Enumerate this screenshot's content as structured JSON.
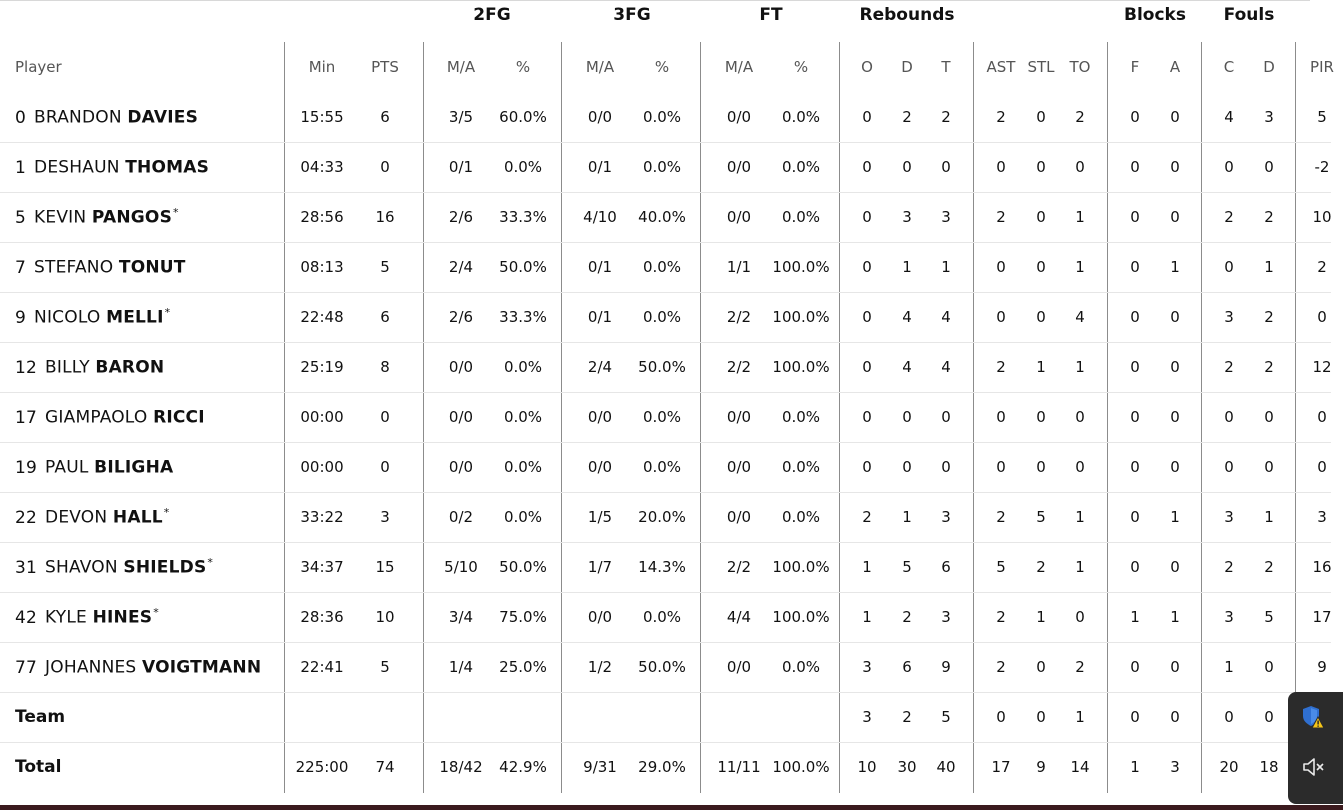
{
  "groups": {
    "fg2": "2FG",
    "fg3": "3FG",
    "ft": "FT",
    "reb": "Rebounds",
    "blk": "Blocks",
    "fouls": "Fouls"
  },
  "headers": {
    "player": "Player",
    "min": "Min",
    "pts": "PTS",
    "fg2_ma": "M/A",
    "fg2_pct": "%",
    "fg3_ma": "M/A",
    "fg3_pct": "%",
    "ft_ma": "M/A",
    "ft_pct": "%",
    "o": "O",
    "d": "D",
    "t": "T",
    "ast": "AST",
    "stl": "STL",
    "to": "TO",
    "blk_f": "F",
    "blk_a": "A",
    "foul_c": "C",
    "foul_d": "D",
    "pir": "PIR"
  },
  "players": [
    {
      "num": "0",
      "first": "BRANDON",
      "last": "DAVIES",
      "star": "",
      "min": "15:55",
      "pts": "6",
      "fg2_ma": "3/5",
      "fg2_pct": "60.0%",
      "fg3_ma": "0/0",
      "fg3_pct": "0.0%",
      "ft_ma": "0/0",
      "ft_pct": "0.0%",
      "o": "0",
      "d": "2",
      "t": "2",
      "ast": "2",
      "stl": "0",
      "to": "2",
      "blk_f": "0",
      "blk_a": "0",
      "foul_c": "4",
      "foul_d": "3",
      "pir": "5"
    },
    {
      "num": "1",
      "first": "DESHAUN",
      "last": "THOMAS",
      "star": "",
      "min": "04:33",
      "pts": "0",
      "fg2_ma": "0/1",
      "fg2_pct": "0.0%",
      "fg3_ma": "0/1",
      "fg3_pct": "0.0%",
      "ft_ma": "0/0",
      "ft_pct": "0.0%",
      "o": "0",
      "d": "0",
      "t": "0",
      "ast": "0",
      "stl": "0",
      "to": "0",
      "blk_f": "0",
      "blk_a": "0",
      "foul_c": "0",
      "foul_d": "0",
      "pir": "-2"
    },
    {
      "num": "5",
      "first": "KEVIN",
      "last": "PANGOS",
      "star": "*",
      "min": "28:56",
      "pts": "16",
      "fg2_ma": "2/6",
      "fg2_pct": "33.3%",
      "fg3_ma": "4/10",
      "fg3_pct": "40.0%",
      "ft_ma": "0/0",
      "ft_pct": "0.0%",
      "o": "0",
      "d": "3",
      "t": "3",
      "ast": "2",
      "stl": "0",
      "to": "1",
      "blk_f": "0",
      "blk_a": "0",
      "foul_c": "2",
      "foul_d": "2",
      "pir": "10"
    },
    {
      "num": "7",
      "first": "STEFANO",
      "last": "TONUT",
      "star": "",
      "min": "08:13",
      "pts": "5",
      "fg2_ma": "2/4",
      "fg2_pct": "50.0%",
      "fg3_ma": "0/1",
      "fg3_pct": "0.0%",
      "ft_ma": "1/1",
      "ft_pct": "100.0%",
      "o": "0",
      "d": "1",
      "t": "1",
      "ast": "0",
      "stl": "0",
      "to": "1",
      "blk_f": "0",
      "blk_a": "1",
      "foul_c": "0",
      "foul_d": "1",
      "pir": "2"
    },
    {
      "num": "9",
      "first": "NICOLO",
      "last": "MELLI",
      "star": "*",
      "min": "22:48",
      "pts": "6",
      "fg2_ma": "2/6",
      "fg2_pct": "33.3%",
      "fg3_ma": "0/1",
      "fg3_pct": "0.0%",
      "ft_ma": "2/2",
      "ft_pct": "100.0%",
      "o": "0",
      "d": "4",
      "t": "4",
      "ast": "0",
      "stl": "0",
      "to": "4",
      "blk_f": "0",
      "blk_a": "0",
      "foul_c": "3",
      "foul_d": "2",
      "pir": "0"
    },
    {
      "num": "12",
      "first": "BILLY",
      "last": "BARON",
      "star": "",
      "min": "25:19",
      "pts": "8",
      "fg2_ma": "0/0",
      "fg2_pct": "0.0%",
      "fg3_ma": "2/4",
      "fg3_pct": "50.0%",
      "ft_ma": "2/2",
      "ft_pct": "100.0%",
      "o": "0",
      "d": "4",
      "t": "4",
      "ast": "2",
      "stl": "1",
      "to": "1",
      "blk_f": "0",
      "blk_a": "0",
      "foul_c": "2",
      "foul_d": "2",
      "pir": "12"
    },
    {
      "num": "17",
      "first": "GIAMPAOLO",
      "last": "RICCI",
      "star": "",
      "min": "00:00",
      "pts": "0",
      "fg2_ma": "0/0",
      "fg2_pct": "0.0%",
      "fg3_ma": "0/0",
      "fg3_pct": "0.0%",
      "ft_ma": "0/0",
      "ft_pct": "0.0%",
      "o": "0",
      "d": "0",
      "t": "0",
      "ast": "0",
      "stl": "0",
      "to": "0",
      "blk_f": "0",
      "blk_a": "0",
      "foul_c": "0",
      "foul_d": "0",
      "pir": "0"
    },
    {
      "num": "19",
      "first": "PAUL",
      "last": "BILIGHA",
      "star": "",
      "min": "00:00",
      "pts": "0",
      "fg2_ma": "0/0",
      "fg2_pct": "0.0%",
      "fg3_ma": "0/0",
      "fg3_pct": "0.0%",
      "ft_ma": "0/0",
      "ft_pct": "0.0%",
      "o": "0",
      "d": "0",
      "t": "0",
      "ast": "0",
      "stl": "0",
      "to": "0",
      "blk_f": "0",
      "blk_a": "0",
      "foul_c": "0",
      "foul_d": "0",
      "pir": "0"
    },
    {
      "num": "22",
      "first": "DEVON",
      "last": "HALL",
      "star": "*",
      "min": "33:22",
      "pts": "3",
      "fg2_ma": "0/2",
      "fg2_pct": "0.0%",
      "fg3_ma": "1/5",
      "fg3_pct": "20.0%",
      "ft_ma": "0/0",
      "ft_pct": "0.0%",
      "o": "2",
      "d": "1",
      "t": "3",
      "ast": "2",
      "stl": "5",
      "to": "1",
      "blk_f": "0",
      "blk_a": "1",
      "foul_c": "3",
      "foul_d": "1",
      "pir": "3"
    },
    {
      "num": "31",
      "first": "SHAVON",
      "last": "SHIELDS",
      "star": "*",
      "min": "34:37",
      "pts": "15",
      "fg2_ma": "5/10",
      "fg2_pct": "50.0%",
      "fg3_ma": "1/7",
      "fg3_pct": "14.3%",
      "ft_ma": "2/2",
      "ft_pct": "100.0%",
      "o": "1",
      "d": "5",
      "t": "6",
      "ast": "5",
      "stl": "2",
      "to": "1",
      "blk_f": "0",
      "blk_a": "0",
      "foul_c": "2",
      "foul_d": "2",
      "pir": "16"
    },
    {
      "num": "42",
      "first": "KYLE",
      "last": "HINES",
      "star": "*",
      "min": "28:36",
      "pts": "10",
      "fg2_ma": "3/4",
      "fg2_pct": "75.0%",
      "fg3_ma": "0/0",
      "fg3_pct": "0.0%",
      "ft_ma": "4/4",
      "ft_pct": "100.0%",
      "o": "1",
      "d": "2",
      "t": "3",
      "ast": "2",
      "stl": "1",
      "to": "0",
      "blk_f": "1",
      "blk_a": "1",
      "foul_c": "3",
      "foul_d": "5",
      "pir": "17"
    },
    {
      "num": "77",
      "first": "JOHANNES",
      "last": "VOIGTMANN",
      "star": "",
      "min": "22:41",
      "pts": "5",
      "fg2_ma": "1/4",
      "fg2_pct": "25.0%",
      "fg3_ma": "1/2",
      "fg3_pct": "50.0%",
      "ft_ma": "0/0",
      "ft_pct": "0.0%",
      "o": "3",
      "d": "6",
      "t": "9",
      "ast": "2",
      "stl": "0",
      "to": "2",
      "blk_f": "0",
      "blk_a": "0",
      "foul_c": "1",
      "foul_d": "0",
      "pir": "9"
    }
  ],
  "team": {
    "label": "Team",
    "min": "",
    "pts": "",
    "fg2_ma": "",
    "fg2_pct": "",
    "fg3_ma": "",
    "fg3_pct": "",
    "ft_ma": "",
    "ft_pct": "",
    "o": "3",
    "d": "2",
    "t": "5",
    "ast": "0",
    "stl": "0",
    "to": "1",
    "blk_f": "0",
    "blk_a": "0",
    "foul_c": "0",
    "foul_d": "0",
    "pir": ""
  },
  "total": {
    "label": "Total",
    "min": "225:00",
    "pts": "74",
    "fg2_ma": "18/42",
    "fg2_pct": "42.9%",
    "fg3_ma": "9/31",
    "fg3_pct": "29.0%",
    "ft_ma": "11/11",
    "ft_pct": "100.0%",
    "o": "10",
    "d": "30",
    "t": "40",
    "ast": "17",
    "stl": "9",
    "to": "14",
    "blk_f": "1",
    "blk_a": "3",
    "foul_c": "20",
    "foul_d": "18",
    "pir": ""
  },
  "tray_icons": [
    "security-shield-warning-icon",
    "speaker-muted-icon"
  ],
  "colors": {
    "separator": "#8c8c8c",
    "header_text": "#555555",
    "tray_bg": "#2b2b2b",
    "bottom_bar": "#3b1a1e",
    "shield_blue": "#2f6fd0",
    "warning_yellow": "#f5c518"
  }
}
